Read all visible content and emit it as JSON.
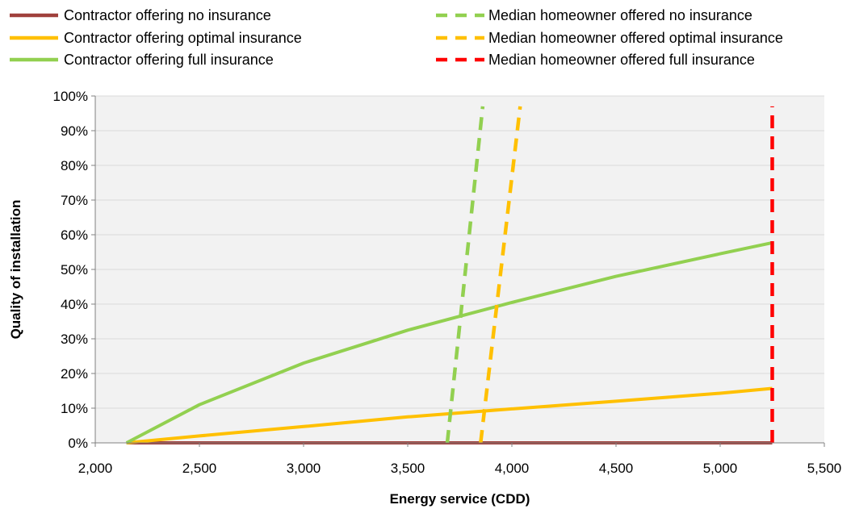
{
  "chart_data": {
    "type": "line",
    "xlabel": "Energy service (CDD)",
    "ylabel": "Quality of installation",
    "xlim": [
      2000,
      5500
    ],
    "ylim": [
      0,
      1
    ],
    "x_ticks": [
      "2,000",
      "2,500",
      "3,000",
      "3,500",
      "4,000",
      "4,500",
      "5,000",
      "5,500"
    ],
    "y_ticks": [
      "0%",
      "10%",
      "20%",
      "30%",
      "40%",
      "50%",
      "60%",
      "70%",
      "80%",
      "90%",
      "100%"
    ],
    "grid": "horizontal",
    "legend_position": "top",
    "series": [
      {
        "name": "Contractor offering no insurance",
        "color": "#A0403C",
        "style": "solid",
        "x": [
          2150,
          5250
        ],
        "y": [
          0.0,
          0.0
        ]
      },
      {
        "name": "Contractor offering optimal insurance",
        "color": "#FFC000",
        "style": "solid",
        "x": [
          2150,
          2500,
          3000,
          3500,
          4000,
          4500,
          5000,
          5250
        ],
        "y": [
          0.0,
          0.02,
          0.047,
          0.075,
          0.098,
          0.12,
          0.143,
          0.157
        ]
      },
      {
        "name": "Contractor offering full insurance",
        "color": "#92D050",
        "style": "solid",
        "x": [
          2150,
          2500,
          3000,
          3500,
          3750,
          4000,
          4500,
          5000,
          5250
        ],
        "y": [
          0.0,
          0.11,
          0.23,
          0.325,
          0.365,
          0.405,
          0.48,
          0.545,
          0.577
        ]
      },
      {
        "name": "Median homeowner offered no insurance",
        "color": "#92D050",
        "style": "dashed",
        "x": [
          3690,
          3860
        ],
        "y": [
          0.0,
          0.97
        ]
      },
      {
        "name": "Median homeowner offered optimal insurance",
        "color": "#FFC000",
        "style": "dashed",
        "x": [
          3850,
          4040
        ],
        "y": [
          0.0,
          0.97
        ]
      },
      {
        "name": "Median homeowner offered full insurance",
        "color": "#FF0000",
        "style": "dashed",
        "x": [
          5250,
          5250
        ],
        "y": [
          0.0,
          0.97
        ]
      }
    ]
  }
}
